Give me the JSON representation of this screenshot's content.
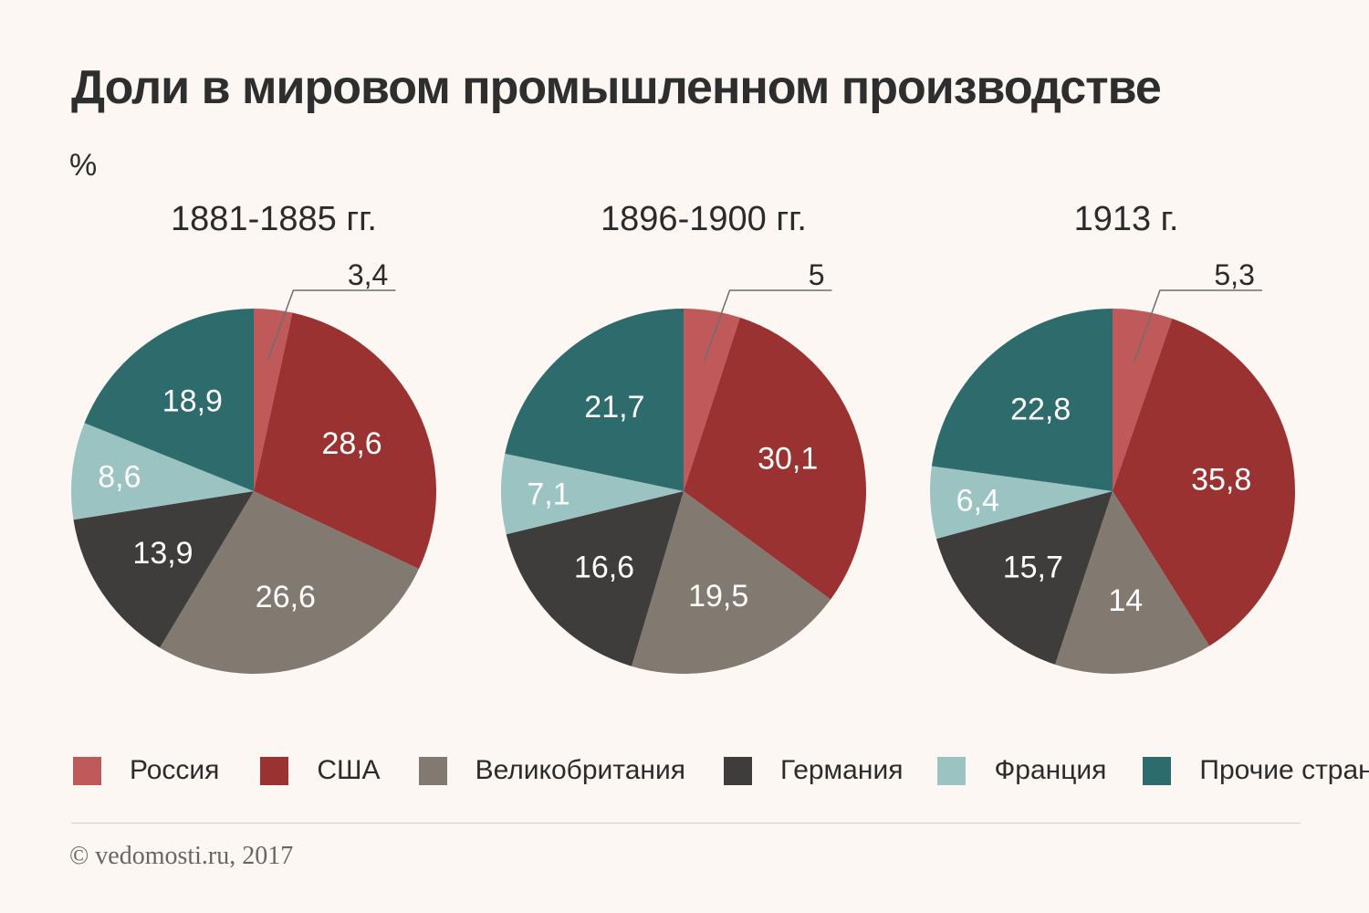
{
  "title": "Доли в мировом промышленном производстве",
  "unit_label": "%",
  "colors": {
    "Россия": "#c05a5a",
    "США": "#9b3232",
    "Великобритания": "#827a70",
    "Германия": "#3f3d3c",
    "Франция": "#9bc3c1",
    "Прочие страны": "#2e6b6c"
  },
  "legend": [
    "Россия",
    "США",
    "Великобритания",
    "Германия",
    "Франция",
    "Прочие страны"
  ],
  "chart_data": [
    {
      "type": "pie",
      "title": "1881-1885 гг.",
      "labels": [
        "Россия",
        "США",
        "Великобритания",
        "Германия",
        "Франция",
        "Прочие страны"
      ],
      "values": [
        3.4,
        28.6,
        26.6,
        13.9,
        8.6,
        18.9
      ],
      "value_labels": [
        "3,4",
        "28,6",
        "26,6",
        "13,9",
        "8,6",
        "18,9"
      ]
    },
    {
      "type": "pie",
      "title": "1896-1900 гг.",
      "labels": [
        "Россия",
        "США",
        "Великобритания",
        "Германия",
        "Франция",
        "Прочие страны"
      ],
      "values": [
        5,
        30.1,
        19.5,
        16.6,
        7.1,
        21.7
      ],
      "value_labels": [
        "5",
        "30,1",
        "19,5",
        "16,6",
        "7,1",
        "21,7"
      ]
    },
    {
      "type": "pie",
      "title": "1913 г.",
      "labels": [
        "Россия",
        "США",
        "Великобритания",
        "Германия",
        "Франция",
        "Прочие страны"
      ],
      "values": [
        5.3,
        35.8,
        14,
        15.7,
        6.4,
        22.8
      ],
      "value_labels": [
        "5,3",
        "35,8",
        "14",
        "15,7",
        "6,4",
        "22,8"
      ]
    }
  ],
  "credit": "© vedomosti.ru, 2017"
}
